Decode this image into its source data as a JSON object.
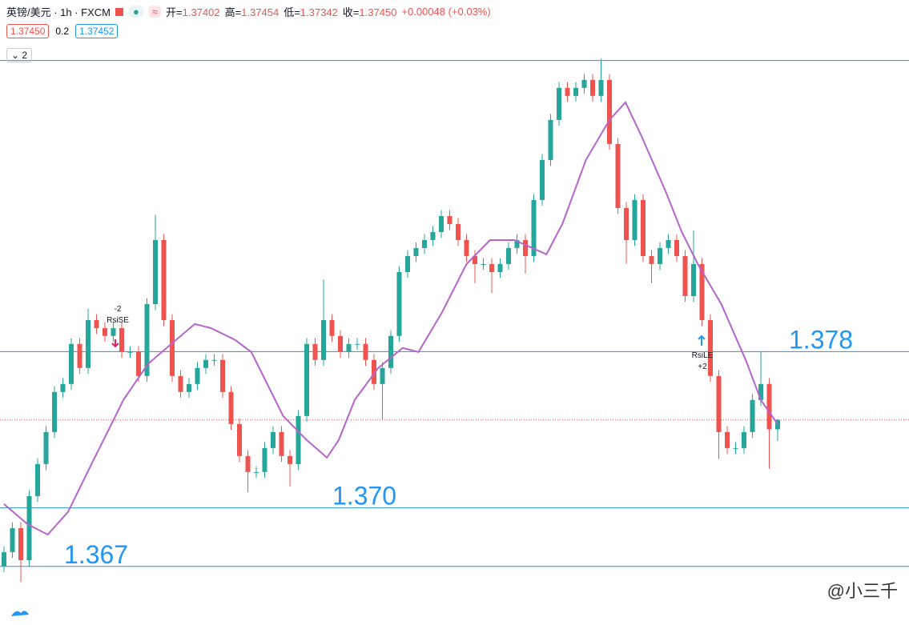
{
  "header": {
    "title": "英镑/美元 · 1h · FXCM",
    "ohlc": [
      {
        "key": "开=",
        "value": "1.37402"
      },
      {
        "key": "高=",
        "value": "1.37454"
      },
      {
        "key": "低=",
        "value": "1.37342"
      },
      {
        "key": "收=",
        "value": "1.37450"
      }
    ],
    "change": "+0.00048 (+0.03%)",
    "sell": "1.37450",
    "spread": "0.2",
    "buy": "1.37452",
    "indicators": "2"
  },
  "watermark": "@小三千",
  "chart_data": {
    "type": "candlestick",
    "ylim": [
      1.364,
      1.396
    ],
    "up_color": "#26a69a",
    "down_color": "#ef5350",
    "open": [
      1.367,
      1.36773,
      1.36896,
      1.36732,
      1.3706,
      1.37224,
      1.37388,
      1.37593,
      1.37634,
      1.37839,
      1.37716,
      1.37961,
      1.3792,
      1.3788,
      1.3792,
      1.37798,
      1.37798,
      1.37675,
      1.38043,
      1.38371,
      1.37961,
      1.37675,
      1.37593,
      1.37634,
      1.37716,
      1.37757,
      1.37757,
      1.37593,
      1.37429,
      1.37265,
      1.37183,
      1.37183,
      1.37306,
      1.37388,
      1.37265,
      1.37224,
      1.3747,
      1.37839,
      1.37757,
      1.37961,
      1.3788,
      1.37798,
      1.37839,
      1.37839,
      1.37757,
      1.37634,
      1.37716,
      1.3788,
      1.38207,
      1.38289,
      1.3833,
      1.38371,
      1.38412,
      1.38494,
      1.38453,
      1.38371,
      1.38289,
      1.38248,
      1.38248,
      1.38207,
      1.38248,
      1.3833,
      1.38371,
      1.38289,
      1.38576,
      1.38781,
      1.38986,
      1.3915,
      1.39109,
      1.3915,
      1.39191,
      1.39109,
      1.39191,
      1.38863,
      1.38535,
      1.38371,
      1.38576,
      1.38289,
      1.38248,
      1.3833,
      1.38371,
      1.38289,
      1.38084,
      1.38248,
      1.37961,
      1.37675,
      1.37388,
      1.37306,
      1.37306,
      1.37388,
      1.37552,
      1.37634,
      1.37402
    ],
    "high": [
      1.36803,
      1.36926,
      1.36926,
      1.3709,
      1.37254,
      1.37418,
      1.37623,
      1.37664,
      1.37869,
      1.37869,
      1.3802,
      1.37991,
      1.3795,
      1.3795,
      1.3795,
      1.37828,
      1.37828,
      1.38073,
      1.385,
      1.38401,
      1.37991,
      1.37705,
      1.37664,
      1.37746,
      1.37787,
      1.37787,
      1.37787,
      1.37623,
      1.37459,
      1.37295,
      1.37213,
      1.37336,
      1.37418,
      1.37418,
      1.37295,
      1.375,
      1.37869,
      1.37869,
      1.3817,
      1.37991,
      1.3791,
      1.37869,
      1.37869,
      1.37869,
      1.37787,
      1.37746,
      1.3791,
      1.38237,
      1.38319,
      1.3836,
      1.38401,
      1.38442,
      1.38524,
      1.38524,
      1.38483,
      1.38401,
      1.38319,
      1.38278,
      1.38278,
      1.38278,
      1.3836,
      1.38401,
      1.38401,
      1.38606,
      1.38811,
      1.39016,
      1.3918,
      1.3918,
      1.3918,
      1.39221,
      1.39221,
      1.393,
      1.39221,
      1.38893,
      1.38565,
      1.38606,
      1.38606,
      1.38319,
      1.3836,
      1.38401,
      1.38401,
      1.38319,
      1.3842,
      1.38278,
      1.37991,
      1.37705,
      1.37418,
      1.37336,
      1.37418,
      1.37582,
      1.378,
      1.37664,
      1.37454
    ],
    "low": [
      1.3667,
      1.36743,
      1.3662,
      1.36702,
      1.3703,
      1.37194,
      1.37358,
      1.37563,
      1.37604,
      1.37686,
      1.37686,
      1.3789,
      1.3785,
      1.3785,
      1.37768,
      1.37768,
      1.37645,
      1.37645,
      1.38013,
      1.37931,
      1.37645,
      1.37563,
      1.37563,
      1.37604,
      1.37686,
      1.37727,
      1.37563,
      1.37399,
      1.37235,
      1.3708,
      1.37153,
      1.37153,
      1.37276,
      1.37235,
      1.3711,
      1.37194,
      1.3744,
      1.37727,
      1.37727,
      1.3785,
      1.37768,
      1.37768,
      1.37809,
      1.37727,
      1.37604,
      1.3745,
      1.37686,
      1.3785,
      1.38177,
      1.38259,
      1.383,
      1.38341,
      1.38382,
      1.38423,
      1.38341,
      1.38259,
      1.3815,
      1.38218,
      1.381,
      1.38177,
      1.38218,
      1.383,
      1.382,
      1.38259,
      1.38546,
      1.38751,
      1.38956,
      1.39079,
      1.39079,
      1.3912,
      1.39079,
      1.39079,
      1.38833,
      1.38505,
      1.3825,
      1.38341,
      1.38259,
      1.3815,
      1.38218,
      1.383,
      1.38259,
      1.38054,
      1.38054,
      1.37931,
      1.37645,
      1.3725,
      1.37276,
      1.37276,
      1.37276,
      1.37358,
      1.37522,
      1.372,
      1.37342
    ],
    "close": [
      1.36773,
      1.36896,
      1.36732,
      1.3706,
      1.37224,
      1.37388,
      1.37593,
      1.37634,
      1.37839,
      1.37716,
      1.37961,
      1.3792,
      1.3788,
      1.3792,
      1.37798,
      1.37798,
      1.37675,
      1.38043,
      1.38371,
      1.37961,
      1.37675,
      1.37593,
      1.37634,
      1.37716,
      1.37757,
      1.37757,
      1.37593,
      1.37429,
      1.37265,
      1.37183,
      1.37183,
      1.37306,
      1.37388,
      1.37265,
      1.37224,
      1.3747,
      1.37839,
      1.37757,
      1.37961,
      1.3788,
      1.37798,
      1.37839,
      1.37839,
      1.37757,
      1.37634,
      1.37716,
      1.3788,
      1.38207,
      1.38289,
      1.3833,
      1.38371,
      1.38412,
      1.38494,
      1.38453,
      1.38371,
      1.38289,
      1.38248,
      1.38248,
      1.38207,
      1.38248,
      1.3833,
      1.38371,
      1.38289,
      1.38576,
      1.38781,
      1.38986,
      1.3915,
      1.39109,
      1.3915,
      1.39191,
      1.39109,
      1.39191,
      1.38863,
      1.38535,
      1.38371,
      1.38576,
      1.38289,
      1.38248,
      1.3833,
      1.38371,
      1.38289,
      1.38084,
      1.38248,
      1.37961,
      1.37675,
      1.37388,
      1.37306,
      1.37306,
      1.37388,
      1.37552,
      1.37634,
      1.37402,
      1.3745
    ],
    "ma": {
      "color": "#b565c9",
      "x": [
        0,
        2.8,
        5.2,
        7.6,
        10.4,
        12.3,
        14.2,
        17.1,
        19.9,
        22.7,
        24.6,
        27.5,
        29.4,
        31.3,
        33.2,
        36,
        38.4,
        39.8,
        41.7,
        44.5,
        47.4,
        49.3,
        52.1,
        55,
        57.8,
        60.7,
        64.5,
        66.4,
        69.2,
        72,
        73.9,
        75.8,
        78.7,
        80.6,
        82.5,
        85.3,
        88.2,
        90,
        92
      ],
      "values": [
        1.37019,
        1.36916,
        1.36863,
        1.36978,
        1.37224,
        1.37388,
        1.37552,
        1.37736,
        1.37839,
        1.37941,
        1.3792,
        1.37859,
        1.37798,
        1.37634,
        1.3747,
        1.37347,
        1.37257,
        1.37347,
        1.37552,
        1.37716,
        1.37818,
        1.37798,
        1.38002,
        1.38248,
        1.38371,
        1.38371,
        1.38298,
        1.38453,
        1.38781,
        1.38986,
        1.39076,
        1.38904,
        1.38617,
        1.38412,
        1.38248,
        1.38043,
        1.37757,
        1.37552,
        1.37429
      ]
    },
    "levels": [
      1.378,
      {
        "value": 1.37,
        "label": "1.370"
      },
      1.367
    ],
    "top_line": 1.3929,
    "signals": [
      {
        "top": "-2",
        "bottom": "RsiSE"
      },
      {
        "top": "RsiLE",
        "bottom": "+2"
      }
    ]
  }
}
